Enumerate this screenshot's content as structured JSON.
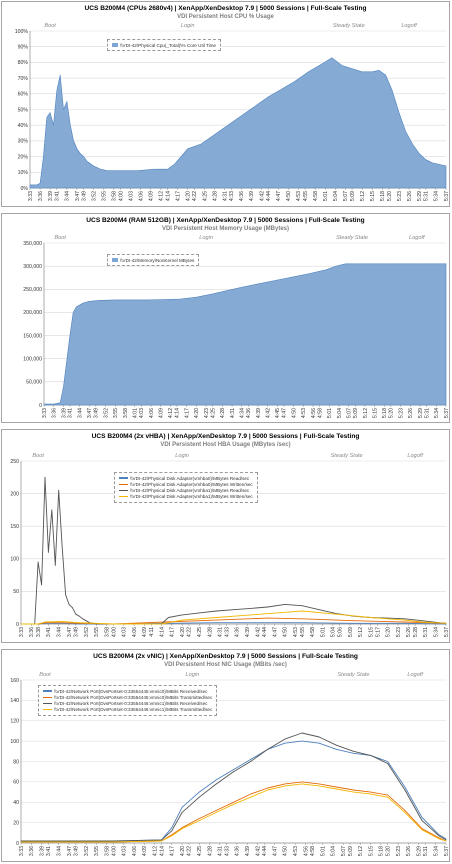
{
  "panels": [
    {
      "title": "UCS B200M4 (CPUs 2680v4) | XenApp/XenDesktop 7.9 | 5000 Sessions | Full-Scale Testing",
      "subtitle": "VDI Persistent Host CPU % Usage",
      "phases": [
        {
          "label": "Boot",
          "at": "3:39"
        },
        {
          "label": "Login",
          "at": "4:20"
        },
        {
          "label": "Steady State",
          "at": "5:08"
        },
        {
          "label": "Logoff",
          "at": "5:26"
        }
      ],
      "legend": [
        "\\\\VDI-42\\Physical Cpu(_Total)\\% Core Util Time"
      ]
    },
    {
      "title": "UCS B200M4 (RAM 512GB) | XenApp/XenDesktop 7.9 | 5000 Sessions | Full-Scale Testing",
      "subtitle": "VDI Persistent Host Memory Usage (MBytes)",
      "phases": [
        {
          "label": "Boot",
          "at": "3:38"
        },
        {
          "label": "Login",
          "at": "4:23"
        },
        {
          "label": "Steady State",
          "at": "5:08"
        },
        {
          "label": "Logoff",
          "at": "5:28"
        }
      ],
      "legend": [
        "\\\\VDI-42\\Memory\\NonKernel MBytes"
      ]
    },
    {
      "title": "UCS B200M4 (2x vHBA) | XenApp/XenDesktop 7.9 | 5000 Sessions | Full-Scale Testing",
      "subtitle": "VDI Persistent Host HBA Usage (MBytes /sec)",
      "phases": [
        {
          "label": "Boot",
          "at": "3:38"
        },
        {
          "label": "Login",
          "at": "4:20"
        },
        {
          "label": "Steady State",
          "at": "5:08"
        },
        {
          "label": "Logoff",
          "at": "5:28"
        }
      ],
      "legend": [
        "\\\\VDI-42\\Physical Disk Adapter(vmhba0)\\MBytes Read/sec",
        "\\\\VDI-42\\Physical Disk Adapter(vmhba0)\\MBytes Written/sec",
        "\\\\VDI-42\\Physical Disk Adapter(vmhba1)\\MBytes Read/sec",
        "\\\\VDI-42\\Physical Disk Adapter(vmhba1)\\MBytes Written/sec"
      ]
    },
    {
      "title": "UCS B200M4 (2x vNIC) | XenApp/XenDesktop 7.9 | 5000 Sessions | Full-Scale Testing",
      "subtitle": "VDI Persistent Host NIC Usage (MBits /sec)",
      "phases": [
        {
          "label": "Boot",
          "at": "3:40"
        },
        {
          "label": "Login",
          "at": "4:23"
        },
        {
          "label": "Steady State",
          "at": "5:10"
        },
        {
          "label": "Logoff",
          "at": "5:28"
        }
      ],
      "legend": [
        "\\\\VDI-42\\Network Port(DvsPortset-0:33554445:vmnic0)\\MBits Received/sec",
        "\\\\VDI-42\\Network Port(DvsPortset-0:33554445:vmnic0)\\MBits Transmitted/sec",
        "\\\\VDI-42\\Network Port(DvsPortset-0:33554446:vmnic1)\\MBits Received/sec",
        "\\\\VDI-42\\Network Port(DvsPortset-0:33554446:vmnic1)\\MBits Transmitted/sec"
      ]
    }
  ],
  "chart_data": [
    {
      "type": "area",
      "title": "UCS B200M4 (CPUs 2680v4) | XenApp/XenDesktop 7.9 | 5000 Sessions | Full-Scale Testing",
      "subtitle": "VDI Persistent Host CPU % Usage",
      "ylim": [
        0,
        100
      ],
      "yticks": [
        "0%",
        "10%",
        "20%",
        "30%",
        "40%",
        "50%",
        "60%",
        "70%",
        "80%",
        "90%",
        "100%"
      ],
      "xticks": [
        "3:33",
        "3:36",
        "3:39",
        "3:41",
        "3:44",
        "3:47",
        "3:49",
        "3:52",
        "3:55",
        "3:58",
        "4:00",
        "4:03",
        "4:06",
        "4:09",
        "4:12",
        "4:14",
        "4:17",
        "4:20",
        "4:22",
        "4:25",
        "4:28",
        "4:31",
        "4:33",
        "4:36",
        "4:39",
        "4:42",
        "4:44",
        "4:47",
        "4:50",
        "4:53",
        "4:55",
        "4:58",
        "5:01",
        "5:04",
        "5:07",
        "5:09",
        "5:12",
        "5:15",
        "5:18",
        "5:20",
        "5:23",
        "5:26",
        "5:29",
        "5:31",
        "5:34",
        "5:37"
      ],
      "series": [
        {
          "name": "\\\\VDI-42\\Physical Cpu(_Total)\\% Core Util Time",
          "color": "#7ea6d3",
          "x": [
            "3:33",
            "3:35",
            "3:36",
            "3:37",
            "3:38",
            "3:39",
            "3:40",
            "3:41",
            "3:42",
            "3:43",
            "3:44",
            "3:45",
            "3:46",
            "3:47",
            "3:48",
            "3:49",
            "3:50",
            "3:52",
            "3:54",
            "3:56",
            "3:58",
            "4:00",
            "4:05",
            "4:10",
            "4:14",
            "4:16",
            "4:18",
            "4:20",
            "4:24",
            "4:28",
            "4:32",
            "4:36",
            "4:40",
            "4:44",
            "4:48",
            "4:52",
            "4:56",
            "5:00",
            "5:03",
            "5:06",
            "5:09",
            "5:12",
            "5:15",
            "5:17",
            "5:19",
            "5:21",
            "5:23",
            "5:25",
            "5:27",
            "5:29",
            "5:31",
            "5:33",
            "5:35",
            "5:37"
          ],
          "values": [
            2,
            2,
            3,
            20,
            45,
            48,
            40,
            62,
            72,
            50,
            55,
            40,
            30,
            25,
            22,
            20,
            17,
            14,
            12,
            11,
            11,
            11,
            11,
            12,
            12,
            15,
            20,
            25,
            28,
            34,
            40,
            46,
            52,
            58,
            63,
            68,
            74,
            79,
            83,
            78,
            76,
            74,
            74,
            75,
            72,
            62,
            48,
            36,
            28,
            22,
            18,
            16,
            15,
            14
          ]
        }
      ]
    },
    {
      "type": "area",
      "title": "UCS B200M4 (RAM 512GB) | XenApp/XenDesktop 7.9 | 5000 Sessions | Full-Scale Testing",
      "subtitle": "VDI Persistent Host Memory Usage (MBytes)",
      "ylim": [
        0,
        350000
      ],
      "yticks": [
        "0",
        "50,000",
        "100,000",
        "150,000",
        "200,000",
        "250,000",
        "300,000",
        "350,000"
      ],
      "xticks": [
        "3:33",
        "3:36",
        "3:39",
        "3:41",
        "3:44",
        "3:47",
        "3:49",
        "3:52",
        "3:55",
        "3:58",
        "4:01",
        "4:03",
        "4:06",
        "4:09",
        "4:12",
        "4:14",
        "4:17",
        "4:20",
        "4:23",
        "4:25",
        "4:28",
        "4:31",
        "4:34",
        "4:36",
        "4:39",
        "4:42",
        "4:45",
        "4:47",
        "4:50",
        "4:53",
        "4:56",
        "4:58",
        "5:01",
        "5:04",
        "5:07",
        "5:09",
        "5:12",
        "5:15",
        "5:18",
        "5:20",
        "5:23",
        "5:26",
        "5:29",
        "5:31",
        "5:34",
        "5:37"
      ],
      "series": [
        {
          "name": "\\\\VDI-42\\Memory\\NonKernel MBytes",
          "color": "#7ea6d3",
          "x": [
            "3:33",
            "3:36",
            "3:38",
            "3:39",
            "3:40",
            "3:41",
            "3:42",
            "3:43",
            "3:45",
            "3:47",
            "3:50",
            "3:55",
            "4:00",
            "4:05",
            "4:10",
            "4:15",
            "4:20",
            "4:25",
            "4:30",
            "4:35",
            "4:40",
            "4:45",
            "4:50",
            "4:55",
            "5:00",
            "5:03",
            "5:06",
            "5:10",
            "5:20",
            "5:30",
            "5:37"
          ],
          "values": [
            2000,
            2000,
            5000,
            40000,
            95000,
            150000,
            200000,
            212000,
            220000,
            224000,
            226000,
            227000,
            227000,
            227000,
            228000,
            229000,
            233000,
            240000,
            248000,
            256000,
            263000,
            270000,
            277000,
            284000,
            292000,
            300000,
            305000,
            305000,
            305000,
            305000,
            305000
          ]
        }
      ]
    },
    {
      "type": "line",
      "title": "UCS B200M4 (2x vHBA) | XenApp/XenDesktop 7.9 | 5000 Sessions | Full-Scale Testing",
      "subtitle": "VDI Persistent Host HBA Usage (MBytes /sec)",
      "ylim": [
        0,
        250
      ],
      "yticks": [
        "0",
        "50",
        "100",
        "150",
        "200",
        "250"
      ],
      "xticks": [
        "3:33",
        "3:36",
        "3:38",
        "3:41",
        "3:44",
        "3:47",
        "3:49",
        "3:52",
        "3:55",
        "3:58",
        "4:00",
        "4:03",
        "4:06",
        "4:09",
        "4:11",
        "4:14",
        "4:17",
        "4:20",
        "4:22",
        "4:25",
        "4:28",
        "4:31",
        "4:33",
        "4:36",
        "4:39",
        "4:42",
        "4:44",
        "4:47",
        "4:50",
        "4:53",
        "4:55",
        "4:58",
        "5:01",
        "5:04",
        "5:06",
        "5:09",
        "5:12",
        "5:15",
        "5:17",
        "5:20",
        "5:23",
        "5:26",
        "5:28",
        "5:31",
        "5:34",
        "5:37"
      ],
      "series": [
        {
          "name": "\\\\VDI-42\\Physical Disk Adapter(vmhba0)\\MBytes Read/sec",
          "color": "#4f81bd",
          "x": [
            "3:33",
            "3:38",
            "3:40",
            "3:45",
            "3:50",
            "4:00",
            "4:15",
            "4:30",
            "4:45",
            "4:55",
            "5:10",
            "5:25",
            "5:37"
          ],
          "values": [
            0,
            0,
            1,
            1,
            0,
            0,
            1,
            2,
            2,
            2,
            1,
            1,
            0
          ]
        },
        {
          "name": "\\\\VDI-42\\Physical Disk Adapter(vmhba0)\\MBytes Written/sec",
          "color": "#e46c0a",
          "x": [
            "3:33",
            "3:38",
            "3:40",
            "3:45",
            "3:50",
            "4:00",
            "4:15",
            "4:30",
            "4:45",
            "4:55",
            "5:10",
            "5:25",
            "5:37"
          ],
          "values": [
            0,
            0,
            2,
            2,
            1,
            0,
            3,
            6,
            9,
            8,
            5,
            3,
            1
          ]
        },
        {
          "name": "\\\\VDI-42\\Physical Disk Adapter(vmhba1)\\MBytes Read/sec",
          "color": "#555555",
          "x": [
            "3:33",
            "3:37",
            "3:38",
            "3:39",
            "3:40",
            "3:41",
            "3:42",
            "3:43",
            "3:44",
            "3:45",
            "3:46",
            "3:47",
            "3:48",
            "3:49",
            "3:50",
            "3:51",
            "3:52",
            "3:53",
            "3:55",
            "4:00",
            "4:05",
            "4:10",
            "4:14",
            "4:16",
            "4:20",
            "4:25",
            "4:30",
            "4:35",
            "4:40",
            "4:45",
            "4:50",
            "4:55",
            "5:00",
            "5:05",
            "5:10",
            "5:15",
            "5:20",
            "5:25",
            "5:30",
            "5:35",
            "5:37"
          ],
          "values": [
            0,
            0,
            95,
            60,
            225,
            110,
            175,
            90,
            205,
            120,
            45,
            30,
            25,
            15,
            12,
            8,
            5,
            2,
            0,
            0,
            0,
            0,
            0,
            10,
            14,
            17,
            20,
            22,
            24,
            26,
            30,
            28,
            22,
            16,
            12,
            10,
            9,
            8,
            5,
            2,
            1
          ]
        },
        {
          "name": "\\\\VDI-42\\Physical Disk Adapter(vmhba1)\\MBytes Written/sec",
          "color": "#f2b705",
          "x": [
            "3:33",
            "3:38",
            "3:40",
            "3:45",
            "3:50",
            "4:00",
            "4:14",
            "4:20",
            "4:30",
            "4:40",
            "4:50",
            "4:55",
            "5:05",
            "5:15",
            "5:25",
            "5:30",
            "5:37"
          ],
          "values": [
            0,
            0,
            3,
            4,
            2,
            0,
            0,
            6,
            10,
            14,
            18,
            20,
            15,
            10,
            6,
            3,
            1
          ]
        }
      ]
    },
    {
      "type": "line",
      "title": "UCS B200M4 (2x vNIC) | XenApp/XenDesktop 7.9 | 5000 Sessions | Full-Scale Testing",
      "subtitle": "VDI Persistent Host NIC Usage (MBits /sec)",
      "ylim": [
        0,
        160
      ],
      "yticks": [
        "0",
        "20",
        "40",
        "60",
        "80",
        "100",
        "120",
        "140",
        "160"
      ],
      "xticks": [
        "3:33",
        "3:36",
        "3:39",
        "3:41",
        "3:44",
        "3:47",
        "3:49",
        "3:52",
        "3:55",
        "3:58",
        "4:00",
        "4:03",
        "4:06",
        "4:09",
        "4:12",
        "4:14",
        "4:17",
        "4:20",
        "4:22",
        "4:25",
        "4:28",
        "4:31",
        "4:33",
        "4:36",
        "4:39",
        "4:42",
        "4:44",
        "4:47",
        "4:50",
        "4:53",
        "4:56",
        "4:58",
        "5:01",
        "5:04",
        "5:07",
        "5:09",
        "5:12",
        "5:15",
        "5:18",
        "5:20",
        "5:23",
        "5:26",
        "5:29",
        "5:31",
        "5:34",
        "5:37"
      ],
      "series": [
        {
          "name": "\\\\VDI-42\\Network Port(DvsPortset-0:33554445:vmnic0)\\MBits Received/sec",
          "color": "#4f81bd",
          "x": [
            "3:33",
            "4:00",
            "4:14",
            "4:17",
            "4:20",
            "4:25",
            "4:30",
            "4:35",
            "4:40",
            "4:45",
            "4:50",
            "4:55",
            "5:00",
            "5:05",
            "5:10",
            "5:15",
            "5:20",
            "5:25",
            "5:30",
            "5:35",
            "5:37"
          ],
          "values": [
            2,
            2,
            3,
            15,
            35,
            50,
            62,
            72,
            82,
            92,
            98,
            100,
            98,
            92,
            88,
            86,
            80,
            55,
            25,
            8,
            4
          ]
        },
        {
          "name": "\\\\VDI-42\\Network Port(DvsPortset-0:33554445:vmnic0)\\MBits Transmitted/sec",
          "color": "#e46c0a",
          "x": [
            "3:33",
            "4:00",
            "4:14",
            "4:17",
            "4:20",
            "4:25",
            "4:30",
            "4:35",
            "4:40",
            "4:45",
            "4:50",
            "4:55",
            "5:00",
            "5:05",
            "5:10",
            "5:15",
            "5:20",
            "5:25",
            "5:30",
            "5:35",
            "5:37"
          ],
          "values": [
            1,
            1,
            2,
            8,
            15,
            24,
            32,
            40,
            48,
            54,
            58,
            60,
            58,
            55,
            52,
            50,
            47,
            32,
            14,
            5,
            2
          ]
        },
        {
          "name": "\\\\VDI-42\\Network Port(DvsPortset-0:33554446:vmnic1)\\MBits Received/sec",
          "color": "#555555",
          "x": [
            "3:33",
            "4:00",
            "4:14",
            "4:17",
            "4:20",
            "4:25",
            "4:30",
            "4:35",
            "4:40",
            "4:45",
            "4:50",
            "4:55",
            "5:00",
            "5:05",
            "5:10",
            "5:15",
            "5:20",
            "5:25",
            "5:30",
            "5:35",
            "5:37"
          ],
          "values": [
            2,
            2,
            3,
            12,
            30,
            45,
            58,
            70,
            80,
            92,
            102,
            108,
            104,
            96,
            90,
            86,
            78,
            52,
            22,
            7,
            3
          ]
        },
        {
          "name": "\\\\VDI-42\\Network Port(DvsPortset-0:33554446:vmnic1)\\MBits Transmitted/sec",
          "color": "#f2b705",
          "x": [
            "3:33",
            "4:00",
            "4:14",
            "4:17",
            "4:20",
            "4:25",
            "4:30",
            "4:35",
            "4:40",
            "4:45",
            "4:50",
            "4:55",
            "5:00",
            "5:05",
            "5:10",
            "5:15",
            "5:20",
            "5:25",
            "5:30",
            "5:35",
            "5:37"
          ],
          "values": [
            1,
            1,
            2,
            7,
            14,
            22,
            30,
            38,
            45,
            52,
            56,
            58,
            56,
            53,
            50,
            48,
            45,
            30,
            13,
            4,
            2
          ]
        }
      ]
    }
  ]
}
